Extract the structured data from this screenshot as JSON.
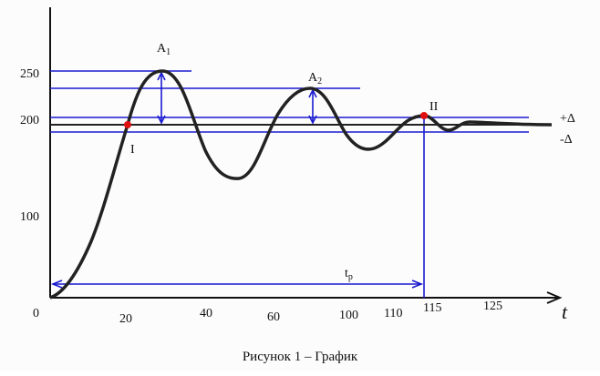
{
  "y_ticks": [
    "250",
    "200",
    "100",
    "0"
  ],
  "x_ticks": [
    "20",
    "40",
    "60",
    "100",
    "110",
    "115",
    "125"
  ],
  "x_axis_label": "t",
  "annotations": {
    "a1": "A",
    "a1_sub": "1",
    "a2": "A",
    "a2_sub": "2",
    "point_1": "I",
    "point_2": "II",
    "plus_delta": "+Δ",
    "minus_delta": "-Δ",
    "tp": "t",
    "tp_sub": "р"
  },
  "caption": "Рисунок 1 – График"
}
